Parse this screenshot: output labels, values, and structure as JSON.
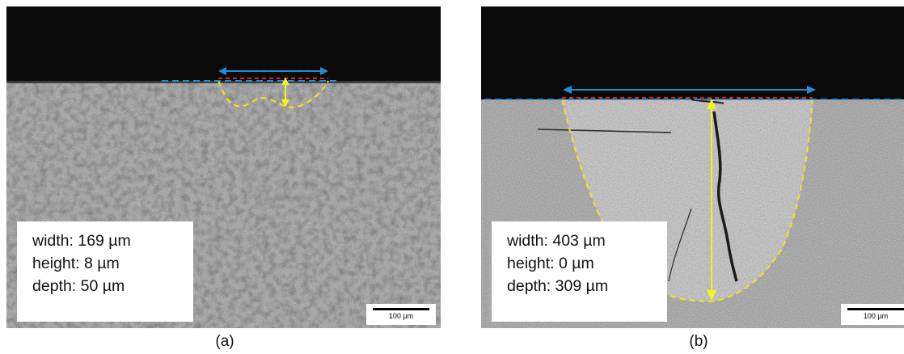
{
  "panels": [
    {
      "id": "a",
      "caption": "(a)",
      "measurements": {
        "width": "width: 169 µm",
        "height": "height: 8 µm",
        "depth": "depth: 50 µm"
      },
      "scale_bar": "100 µm"
    },
    {
      "id": "b",
      "caption": "(b)",
      "measurements": {
        "width": "width: 403 µm",
        "height": "height: 0 µm",
        "depth": "depth: 309 µm"
      },
      "scale_bar": "100 µm"
    }
  ],
  "colors": {
    "width_arrow": "#1e90d6",
    "surface_line": "#1e90d6",
    "bead_line": "#e02020",
    "melt_pool_outline": "#f5e21a",
    "depth_arrow": "#f5f51a",
    "background_black": "#0a0a0a",
    "metal_gray": "#8a8a8a"
  }
}
